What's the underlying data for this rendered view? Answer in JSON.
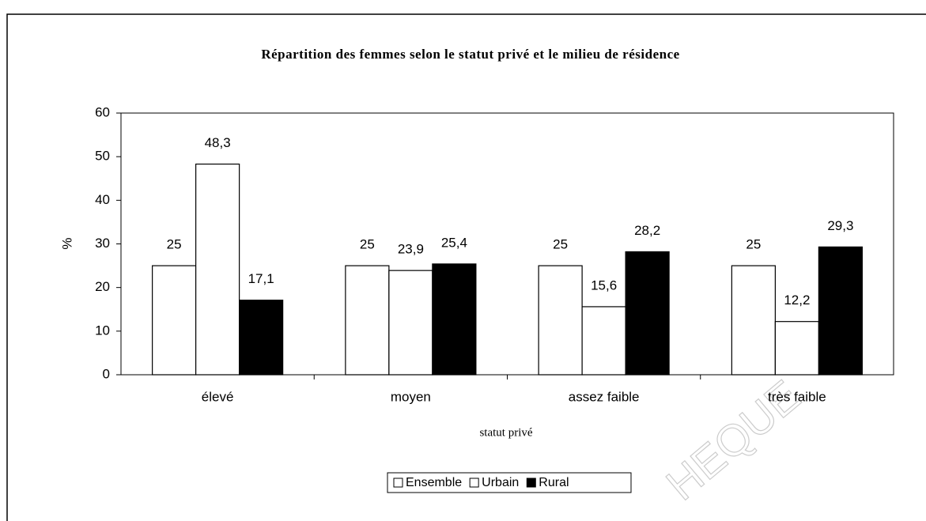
{
  "chart_data": {
    "type": "bar",
    "title": "Répartition des femmes selon le statut privé et le milieu de résidence",
    "x_label": "statut privé",
    "y_label": "%",
    "categories": [
      "élevé",
      "moyen",
      "assez faible",
      "très faible"
    ],
    "series": [
      {
        "name": "Ensemble",
        "color": "#ffffff",
        "values": [
          25,
          25,
          25,
          25
        ],
        "value_labels": [
          "25",
          "25",
          "25",
          "25"
        ]
      },
      {
        "name": "Urbain",
        "color": "#ffffff",
        "values": [
          48.3,
          23.9,
          15.6,
          12.2
        ],
        "value_labels": [
          "48,3",
          "23,9",
          "15,6",
          "12,2"
        ]
      },
      {
        "name": "Rural",
        "color": "#000000",
        "values": [
          17.1,
          25.4,
          28.2,
          29.3
        ],
        "value_labels": [
          "17,1",
          "25,4",
          "28,2",
          "29,3"
        ]
      }
    ],
    "ylim": [
      0,
      60
    ],
    "yticks": [
      0,
      10,
      20,
      30,
      40,
      50,
      60
    ],
    "grid": false,
    "legend": "bottom",
    "watermark": "HEQUE"
  }
}
